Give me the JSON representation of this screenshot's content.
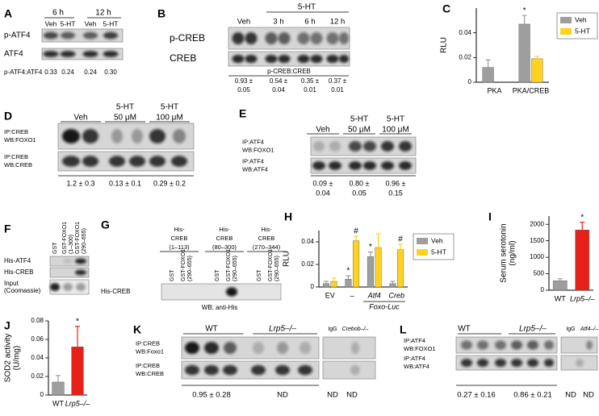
{
  "panels": {
    "A": {
      "label": "A",
      "times": [
        "6 h",
        "12 h"
      ],
      "lanes": [
        "Veh",
        "5-HT",
        "Veh",
        "5-HT"
      ],
      "rows": [
        "p-ATF4",
        "ATF4"
      ],
      "ratio_label": "p-ATF4:ATF4",
      "ratios": [
        "0.33",
        "0.24",
        "0.24",
        "0.30"
      ]
    },
    "B": {
      "label": "B",
      "treatment": "5-HT",
      "groups": [
        "Veh",
        "3 h",
        "6 h",
        "12 h"
      ],
      "rows": [
        "p-CREB",
        "CREB"
      ],
      "ratio_label": "p-CREB:CREB",
      "ratios": [
        [
          "0.93 ±",
          "0.05"
        ],
        [
          "0.54 ±",
          "0.04"
        ],
        [
          "0.35 ±",
          "0.01"
        ],
        [
          "0.37 ±",
          "0.01"
        ]
      ]
    },
    "D": {
      "label": "D",
      "groups": [
        [
          "Veh"
        ],
        [
          "5-HT",
          "50 μM"
        ],
        [
          "5-HT",
          "100 μM"
        ]
      ],
      "rows": [
        [
          "IP:CREB",
          "WB:FOXO1"
        ],
        [
          "IP:CREB",
          "WB:CREB"
        ]
      ],
      "ratios": [
        [
          "1.2 ± 0.3"
        ],
        [
          "0.13 ± 0.1"
        ],
        [
          "0.29 ± 0.2"
        ]
      ]
    },
    "E": {
      "label": "E",
      "groups": [
        [
          "Veh"
        ],
        [
          "5-HT",
          "50 μM"
        ],
        [
          "5-HT",
          "100 μM"
        ]
      ],
      "rows": [
        [
          "IP:ATF4",
          "WB:FOXO1"
        ],
        [
          "IP:ATF4",
          "WB:ATF4"
        ]
      ],
      "ratios": [
        [
          "0.09 ±",
          "0.04"
        ],
        [
          "0.80 ±",
          "0.05"
        ],
        [
          "0.96 ±",
          "0.15"
        ]
      ]
    },
    "F": {
      "label": "F",
      "lanes": [
        [
          "GST"
        ],
        [
          "GST-FOXO1",
          "(1–300)"
        ],
        [
          "GST-FOXO1",
          "(290–655)"
        ]
      ],
      "rows": [
        [
          "His-ATF4"
        ],
        [
          "His-CREB"
        ],
        [
          "Input",
          "(Coomassie)"
        ]
      ]
    },
    "G": {
      "label": "G",
      "groups": [
        [
          "His-",
          "CREB",
          "(1–113)"
        ],
        [
          "His-",
          "CREB",
          "(80–300)"
        ],
        [
          "His-",
          "CREB",
          "(270–344)"
        ]
      ],
      "lanes": [
        [
          "GST"
        ],
        [
          "GST-FOXO1",
          "(290–655)"
        ],
        [
          "GST"
        ],
        [
          "GST-FOXO1",
          "(290–655)"
        ],
        [
          "GST"
        ],
        [
          "GST-FOXO1",
          "(290–655)"
        ]
      ],
      "row": "His-CREB",
      "footer": "WB: anti-His"
    },
    "K": {
      "label": "K",
      "groups": [
        "WT",
        "Lrp5–/–",
        "IgG",
        "Crebob–/–"
      ],
      "rows": [
        [
          "IP:CREB",
          "WB:Foxo1"
        ],
        [
          "IP:CREB",
          "WB:CREB"
        ]
      ],
      "ratios": [
        "0.95 ± 0.28",
        "ND",
        "ND",
        "ND"
      ]
    },
    "L": {
      "label": "L",
      "groups": [
        "WT",
        "Lrp5–/–",
        "IgG",
        "Atf4–/–"
      ],
      "rows": [
        [
          "IP:ATF4",
          "WB:FOXO1"
        ],
        [
          "IP:ATF4",
          "WB:ATF4"
        ]
      ],
      "ratios": [
        "0.27 ± 0.16",
        "0.86 ± 0.21",
        "ND",
        "ND"
      ]
    }
  },
  "chart_data": [
    {
      "type": "bar",
      "label": "C",
      "ylabel": [
        "RLU"
      ],
      "categories": [
        "PKA",
        "PKA/CREB"
      ],
      "legend": "right",
      "series": [
        {
          "name": "Veh",
          "color": "#9e9e9e",
          "values": [
            0.012,
            0.047
          ],
          "errors": [
            0.006,
            0.007
          ],
          "annotations": [
            null,
            "*"
          ]
        },
        {
          "name": "5-HT",
          "color": "#ffd21f",
          "values": [
            null,
            0.019
          ],
          "errors": [
            null,
            0.002
          ],
          "annotations": [
            null,
            null
          ]
        }
      ],
      "ylim": [
        0,
        0.06
      ],
      "yticks": [
        0,
        0.02,
        0.04
      ]
    },
    {
      "type": "bar",
      "label": "H",
      "ylabel": [
        "RLU"
      ],
      "categories": [
        "EV",
        "–",
        "Atf4",
        "Creb"
      ],
      "group_label": "Foxo-Luc",
      "legend": "right",
      "series": [
        {
          "name": "Veh",
          "color": "#9e9e9e",
          "values": [
            0.003,
            0.007,
            0.027,
            0.003
          ],
          "errors": [
            0.002,
            0.003,
            0.004,
            0.002
          ],
          "annotations": [
            null,
            "*",
            "*",
            null
          ]
        },
        {
          "name": "5-HT",
          "color": "#ffd21f",
          "values": [
            0.005,
            0.041,
            0.035,
            0.033
          ],
          "errors": [
            0.003,
            0.004,
            0.012,
            0.005
          ],
          "annotations": [
            null,
            "#",
            null,
            "#"
          ]
        }
      ],
      "ylim": [
        0,
        0.05
      ],
      "yticks": [
        0,
        0.02,
        0.04
      ]
    },
    {
      "type": "bar",
      "label": "I",
      "ylabel": [
        "Serum serotonin",
        "(ng/ml)"
      ],
      "categories": [
        "WT",
        "Lrp5–/–"
      ],
      "values": [
        290,
        1830
      ],
      "errors": [
        60,
        230
      ],
      "annotations": [
        null,
        "*"
      ],
      "colors": [
        "#9e9e9e",
        "#e8201a"
      ],
      "ylim": [
        0,
        2250
      ],
      "yticks": [
        0,
        500,
        1000,
        1500,
        2000
      ]
    },
    {
      "type": "bar",
      "label": "J",
      "ylabel": [
        "SOD2 activity",
        "(U/mg)"
      ],
      "categories": [
        "WT",
        "Lrp5–/–"
      ],
      "values": [
        0.014,
        0.052
      ],
      "errors": [
        0.007,
        0.022
      ],
      "annotations": [
        null,
        "*"
      ],
      "colors": [
        "#9e9e9e",
        "#e8201a"
      ],
      "ylim": [
        0,
        0.08
      ],
      "yticks": [
        0,
        0.02,
        0.04,
        0.06,
        0.08
      ]
    }
  ]
}
